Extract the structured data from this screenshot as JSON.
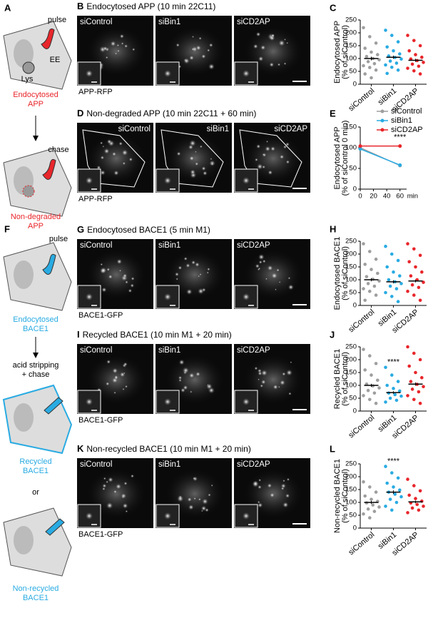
{
  "letters": [
    "A",
    "B",
    "C",
    "D",
    "E",
    "F",
    "G",
    "H",
    "I",
    "J",
    "K",
    "L"
  ],
  "schematic": {
    "pulse_1": "pulse",
    "ee": "EE",
    "lys": "Lys",
    "label_1": [
      "Endocytosed",
      "APP"
    ],
    "chase": "chase",
    "label_2": [
      "Non-degraded",
      "APP"
    ],
    "pulse_2": "pulse",
    "label_3": [
      "Endocytosed",
      "BACE1"
    ],
    "acid": [
      "acid stripping",
      "+ chase"
    ],
    "label_4": [
      "Recycled",
      "BACE1"
    ],
    "or": "or",
    "label_5": [
      "Non-recycled",
      "BACE1"
    ]
  },
  "image_rows": [
    {
      "title": "Endocytosed APP (10 min 22C11)",
      "labels": [
        "siControl",
        "siBin1",
        "siCD2AP"
      ],
      "caption": "APP-RFP"
    },
    {
      "title": "Non-degraded APP (10 min 22C11 + 60 min)",
      "labels": [
        "siControl",
        "siBin1",
        "siCD2AP"
      ],
      "caption": "APP-RFP"
    },
    {
      "title": "Endocytosed BACE1 (5 min M1)",
      "labels": [
        "siControl",
        "siBin1",
        "siCD2AP"
      ],
      "caption": "BACE1-GFP"
    },
    {
      "title": "Recycled BACE1 (10 min M1 + 20 min)",
      "labels": [
        "siControl",
        "siBin1",
        "siCD2AP"
      ],
      "caption": "BACE1-GFP"
    },
    {
      "title": "Non-recycled BACE1 (10 min M1 + 20 min)",
      "labels": [
        "siControl",
        "siBin1",
        "siCD2AP"
      ],
      "caption": "BACE1-GFP"
    }
  ],
  "chart_data": [
    {
      "type": "strip",
      "ylabel": [
        "Endocytosed APP",
        "(% of siControl)"
      ],
      "categories": [
        "siControl",
        "siBin1",
        "siCD2AP"
      ],
      "ylim": [
        0,
        250
      ],
      "yticks": [
        0,
        50,
        100,
        150,
        200,
        250
      ],
      "groups": [
        {
          "color": "#9e9e9e",
          "mean": 100,
          "sem": 7,
          "values": [
            220,
            185,
            160,
            140,
            125,
            115,
            108,
            100,
            95,
            88,
            80,
            72,
            65,
            55,
            40,
            25
          ]
        },
        {
          "color": "#29abe2",
          "mean": 105,
          "sem": 6,
          "values": [
            210,
            190,
            165,
            145,
            130,
            118,
            110,
            104,
            98,
            90,
            82,
            75,
            66,
            55,
            42
          ]
        },
        {
          "color": "#e8262b",
          "mean": 93,
          "sem": 6,
          "values": [
            190,
            170,
            150,
            130,
            115,
            105,
            98,
            92,
            85,
            78,
            70,
            62,
            52,
            40
          ]
        }
      ]
    },
    {
      "type": "line",
      "ylabel": [
        "Endocytosed APP",
        "(% of siControl 0 min)"
      ],
      "xlabel": "min",
      "x": [
        0,
        60
      ],
      "xlim": [
        0,
        70
      ],
      "xticks": [
        0,
        20,
        40,
        60
      ],
      "ylim": [
        0,
        150
      ],
      "yticks": [
        0,
        50,
        100,
        150
      ],
      "annotation": "****",
      "series": [
        {
          "name": "siControl",
          "color": "#9e9e9e",
          "values": [
            100,
            57
          ]
        },
        {
          "name": "siBin1",
          "color": "#29abe2",
          "values": [
            97,
            58
          ]
        },
        {
          "name": "siCD2AP",
          "color": "#e8262b",
          "values": [
            104,
            104
          ]
        }
      ]
    },
    {
      "type": "strip",
      "ylabel": [
        "Endocytosed BACE1",
        "(% of siControl)"
      ],
      "categories": [
        "siControl",
        "siBin1",
        "siCD2AP"
      ],
      "ylim": [
        0,
        250
      ],
      "yticks": [
        0,
        50,
        100,
        150,
        200,
        250
      ],
      "groups": [
        {
          "color": "#9e9e9e",
          "mean": 100,
          "sem": 6,
          "values": [
            240,
            210,
            180,
            160,
            140,
            125,
            112,
            102,
            95,
            85,
            75,
            65,
            55,
            40,
            20
          ]
        },
        {
          "color": "#29abe2",
          "mean": 92,
          "sem": 6,
          "values": [
            230,
            200,
            175,
            150,
            130,
            115,
            100,
            92,
            85,
            75,
            65,
            50,
            35,
            15
          ]
        },
        {
          "color": "#e8262b",
          "mean": 95,
          "sem": 5,
          "values": [
            240,
            220,
            195,
            170,
            150,
            130,
            115,
            100,
            90,
            80,
            70,
            55,
            40,
            20
          ]
        }
      ]
    },
    {
      "type": "strip",
      "ylabel": [
        "Recycled BACE1",
        "(% of siControl)"
      ],
      "categories": [
        "siControl",
        "siBin1",
        "siCD2AP"
      ],
      "ylim": [
        0,
        250
      ],
      "yticks": [
        0,
        50,
        100,
        150,
        200,
        250
      ],
      "annotations": [
        {
          "text": "****",
          "category": "siBin1"
        }
      ],
      "groups": [
        {
          "color": "#9e9e9e",
          "mean": 100,
          "sem": 6,
          "values": [
            240,
            215,
            185,
            160,
            140,
            120,
            105,
            98,
            90,
            80,
            70,
            60,
            45,
            30
          ]
        },
        {
          "color": "#29abe2",
          "mean": 72,
          "sem": 5,
          "values": [
            170,
            140,
            115,
            100,
            88,
            78,
            70,
            64,
            58,
            50,
            42,
            35
          ]
        },
        {
          "color": "#e8262b",
          "mean": 105,
          "sem": 6,
          "values": [
            250,
            225,
            200,
            175,
            150,
            130,
            115,
            104,
            95,
            85,
            75,
            60,
            45,
            30
          ]
        }
      ]
    },
    {
      "type": "strip",
      "ylabel": [
        "Non-recycled BACE1",
        "(% of siControl)"
      ],
      "categories": [
        "siControl",
        "siBin1",
        "siCD2AP"
      ],
      "ylim": [
        0,
        250
      ],
      "yticks": [
        0,
        50,
        100,
        150,
        200,
        250
      ],
      "annotations": [
        {
          "text": "****",
          "category": "siBin1"
        }
      ],
      "groups": [
        {
          "color": "#9e9e9e",
          "mean": 100,
          "sem": 6,
          "values": [
            180,
            160,
            140,
            125,
            112,
            104,
            98,
            90,
            82,
            74,
            65,
            55,
            40
          ]
        },
        {
          "color": "#29abe2",
          "mean": 140,
          "sem": 7,
          "values": [
            240,
            215,
            195,
            175,
            160,
            148,
            140,
            132,
            122,
            112,
            100,
            85,
            70
          ]
        },
        {
          "color": "#e8262b",
          "mean": 102,
          "sem": 5,
          "values": [
            190,
            165,
            145,
            128,
            115,
            105,
            98,
            92,
            85,
            78,
            70,
            60
          ]
        }
      ]
    }
  ]
}
